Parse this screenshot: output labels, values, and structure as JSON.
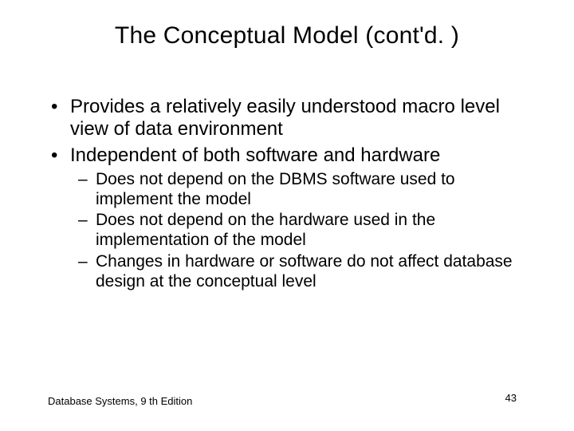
{
  "title": "The Conceptual Model (cont'd. )",
  "bullets": {
    "b0": "Provides a relatively easily understood macro level view of data environment",
    "b1": "Independent of both software and hardware",
    "b1_sub": {
      "s0": "Does not depend on the DBMS software used to implement the model",
      "s1": "Does not depend on the hardware used in the implementation of the model",
      "s2": "Changes in hardware or software do not affect database design at the conceptual level"
    }
  },
  "footer": {
    "source": "Database Systems, 9 th Edition",
    "page": "43"
  },
  "style": {
    "background_color": "#ffffff",
    "text_color": "#000000",
    "title_fontsize": 30,
    "body_fontsize": 24,
    "sub_fontsize": 21,
    "footer_fontsize": 13,
    "font_family": "Arial"
  }
}
